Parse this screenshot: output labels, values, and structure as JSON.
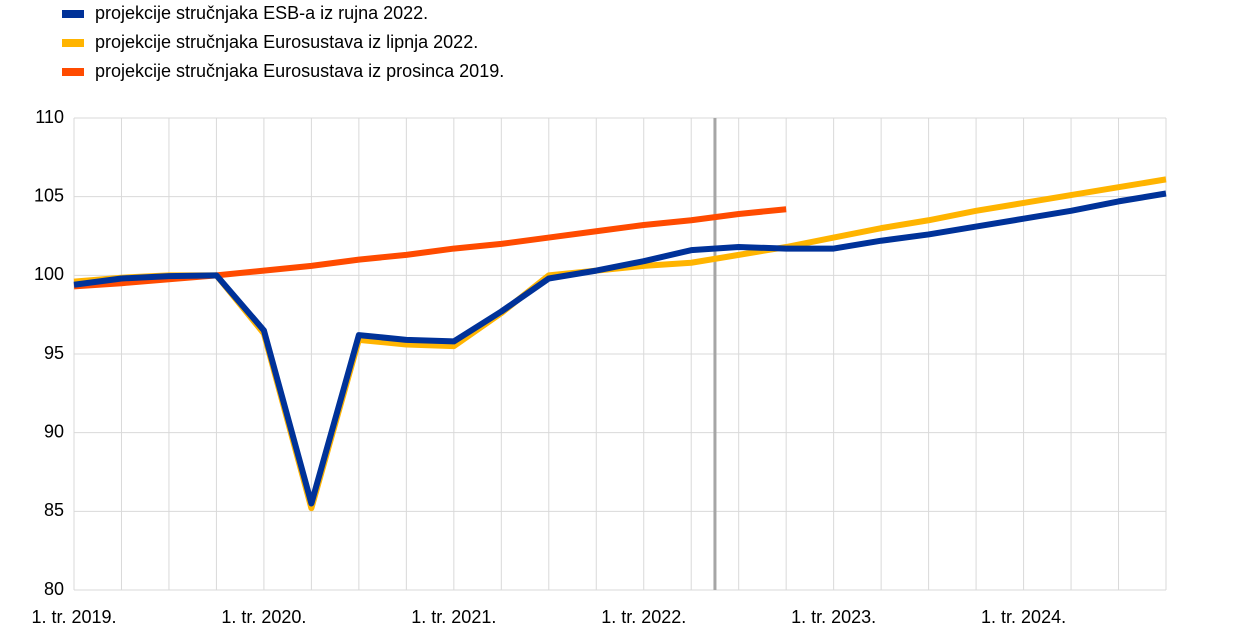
{
  "chart_data": {
    "type": "line",
    "categories": [
      "1. tr. 2019.",
      null,
      null,
      null,
      "1. tr. 2020.",
      null,
      null,
      null,
      "1. tr. 2021.",
      null,
      null,
      null,
      "1. tr. 2022.",
      null,
      null,
      null,
      "1. tr. 2023.",
      null,
      null,
      null,
      "1. tr. 2024.",
      null,
      null,
      null
    ],
    "series": [
      {
        "name": "projekcije stručnjaka ESB-a iz rujna 2022.",
        "color": "#003299",
        "values": [
          99.4,
          99.8,
          99.95,
          100.0,
          96.5,
          85.5,
          96.2,
          95.9,
          95.8,
          97.7,
          99.8,
          100.3,
          100.9,
          101.6,
          101.8,
          101.7,
          101.7,
          102.2,
          102.6,
          103.1,
          103.6,
          104.1,
          104.7,
          105.2
        ]
      },
      {
        "name": "projekcije stručnjaka Eurosustava iz lipnja 2022.",
        "color": "#ffb400",
        "values": [
          99.6,
          99.85,
          100.0,
          100.0,
          96.3,
          85.2,
          95.9,
          95.6,
          95.5,
          97.6,
          100.0,
          100.3,
          100.6,
          100.8,
          101.3,
          101.8,
          102.4,
          103.0,
          103.5,
          104.1,
          104.6,
          105.1,
          105.6,
          106.1
        ]
      },
      {
        "name": "projekcije stručnjaka Eurosustava iz prosinca 2019.",
        "color": "#ff4b00",
        "values": [
          99.3,
          99.5,
          99.75,
          100.0,
          100.3,
          100.6,
          101.0,
          101.3,
          101.7,
          102.0,
          102.4,
          102.8,
          103.2,
          103.5,
          103.9,
          104.2,
          null,
          null,
          null,
          null,
          null,
          null,
          null,
          null
        ]
      }
    ],
    "vline_x": 13.5,
    "ylim": [
      80,
      110
    ],
    "yticks": [
      80,
      85,
      90,
      95,
      100,
      105,
      110
    ],
    "grid": true
  }
}
